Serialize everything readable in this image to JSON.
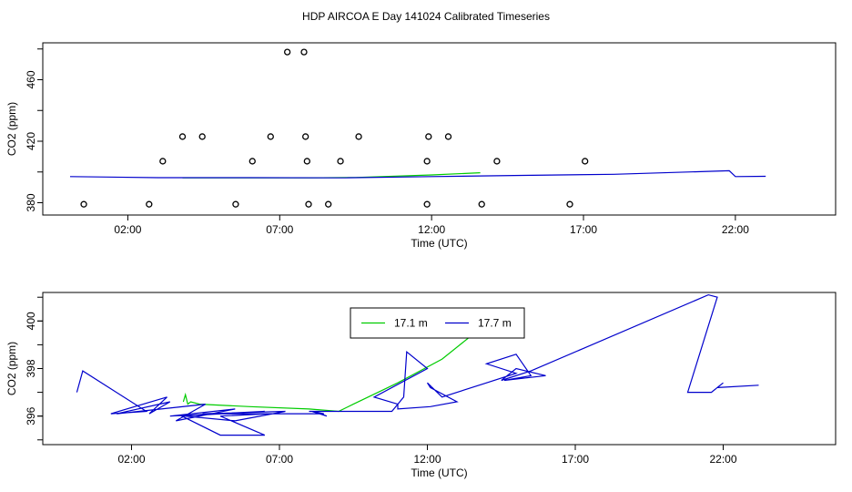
{
  "title": "HDP AIRCOA E  Day 141024  Calibrated Timeseries",
  "chart_data": [
    {
      "type": "scatter",
      "title": "",
      "xlabel": "Time (UTC)",
      "ylabel": "CO2 (ppm)",
      "xlim": [
        -0.8,
        25.3
      ],
      "ylim": [
        372,
        484
      ],
      "x_ticks": [
        {
          "value": 2,
          "label": "02:00"
        },
        {
          "value": 7,
          "label": "07:00"
        },
        {
          "value": 12,
          "label": "12:00"
        },
        {
          "value": 17,
          "label": "17:00"
        },
        {
          "value": 22,
          "label": "22:00"
        }
      ],
      "y_ticks": [
        {
          "value": 380,
          "label": "380"
        },
        {
          "value": 420,
          "label": "420"
        },
        {
          "value": 460,
          "label": "460"
        }
      ],
      "grid": false,
      "points": [
        {
          "x": 0.55,
          "y": 379
        },
        {
          "x": 2.7,
          "y": 379
        },
        {
          "x": 3.15,
          "y": 407
        },
        {
          "x": 3.8,
          "y": 423
        },
        {
          "x": 4.45,
          "y": 423
        },
        {
          "x": 5.55,
          "y": 379
        },
        {
          "x": 6.1,
          "y": 407
        },
        {
          "x": 6.7,
          "y": 423
        },
        {
          "x": 7.25,
          "y": 478
        },
        {
          "x": 7.8,
          "y": 478
        },
        {
          "x": 7.85,
          "y": 423
        },
        {
          "x": 7.9,
          "y": 407
        },
        {
          "x": 7.95,
          "y": 379
        },
        {
          "x": 8.6,
          "y": 379
        },
        {
          "x": 9.0,
          "y": 407
        },
        {
          "x": 9.6,
          "y": 423
        },
        {
          "x": 11.85,
          "y": 379
        },
        {
          "x": 11.85,
          "y": 407
        },
        {
          "x": 11.9,
          "y": 423
        },
        {
          "x": 12.55,
          "y": 423
        },
        {
          "x": 13.65,
          "y": 379
        },
        {
          "x": 14.15,
          "y": 407
        },
        {
          "x": 16.55,
          "y": 379
        },
        {
          "x": 17.05,
          "y": 407
        }
      ],
      "series": [
        {
          "name": "17.1 m",
          "color": "#00cc00",
          "x": [
            3.8,
            6.0,
            8.0,
            9.5,
            12.0,
            13.6
          ],
          "y": [
            396.2,
            396.2,
            396.2,
            396.4,
            398.1,
            399.5
          ]
        },
        {
          "name": "17.7 m",
          "color": "#0000cc",
          "x": [
            0.1,
            3.0,
            6.0,
            9.0,
            12.0,
            15.0,
            18.0,
            21.8,
            22.0,
            23.0
          ],
          "y": [
            397.0,
            396.3,
            396.3,
            396.2,
            397.0,
            397.8,
            398.5,
            400.8,
            397.0,
            397.2
          ]
        }
      ]
    },
    {
      "type": "line",
      "title": "",
      "xlabel": "Time (UTC)",
      "ylabel": "CO2 (ppm)",
      "xlim": [
        -1.0,
        25.8
      ],
      "ylim": [
        394.8,
        401.2
      ],
      "x_ticks": [
        {
          "value": 2,
          "label": "02:00"
        },
        {
          "value": 7,
          "label": "07:00"
        },
        {
          "value": 12,
          "label": "12:00"
        },
        {
          "value": 17,
          "label": "17:00"
        },
        {
          "value": 22,
          "label": "22:00"
        }
      ],
      "y_ticks": [
        {
          "value": 396,
          "label": "396"
        },
        {
          "value": 398,
          "label": "398"
        },
        {
          "value": 400,
          "label": "400"
        }
      ],
      "grid": false,
      "legend": {
        "position": "top-center",
        "entries": [
          "17.1 m",
          "17.7 m"
        ]
      },
      "series": [
        {
          "name": "17.1 m",
          "color": "#00cc00",
          "x": [
            3.75,
            3.82,
            3.9,
            4.0,
            4.3,
            6.0,
            8.0,
            9.0,
            9.5,
            11.0,
            12.5,
            13.5
          ],
          "y": [
            396.6,
            396.9,
            396.5,
            396.6,
            396.5,
            396.4,
            396.3,
            396.2,
            396.5,
            397.4,
            398.4,
            399.4
          ]
        },
        {
          "name": "17.7 m",
          "color": "#0000cc",
          "x": [
            0.15,
            0.35,
            2.5,
            1.3,
            3.2,
            2.6,
            3.3,
            1.5,
            4.5,
            3.5,
            5.5,
            3.3,
            6.5,
            3.7,
            5.0,
            6.5,
            5.0,
            6.6,
            4.6,
            3.8,
            5.5,
            7.2,
            4.4,
            8.5,
            8.1,
            8.6,
            8.2,
            9.0,
            8.0,
            10.8,
            11.2,
            11.3,
            12.0,
            10.2,
            11.0,
            11.0,
            12.1,
            13.0,
            12.1,
            12.0,
            12.5,
            14.0,
            15.0,
            14.0,
            15.0,
            15.5,
            14.6,
            16.0,
            15.0,
            14.5,
            15.5,
            21.5,
            21.8,
            20.8,
            21.6,
            22.0,
            21.8,
            23.2
          ],
          "y": [
            397.0,
            397.9,
            396.2,
            396.1,
            396.8,
            396.1,
            396.6,
            396.1,
            396.5,
            395.8,
            396.3,
            396.0,
            396.2,
            396.0,
            395.2,
            395.2,
            396.0,
            396.1,
            396.1,
            396.0,
            395.8,
            396.2,
            396.1,
            396.1,
            396.2,
            396.0,
            396.2,
            396.2,
            396.2,
            396.2,
            396.8,
            398.7,
            398.0,
            396.8,
            396.5,
            396.3,
            396.4,
            396.6,
            397.2,
            397.4,
            396.8,
            397.4,
            397.8,
            398.2,
            398.6,
            397.7,
            397.5,
            397.7,
            398.0,
            397.5,
            397.9,
            401.1,
            401.0,
            397.0,
            397.0,
            397.4,
            397.2,
            397.3
          ]
        }
      ]
    }
  ]
}
